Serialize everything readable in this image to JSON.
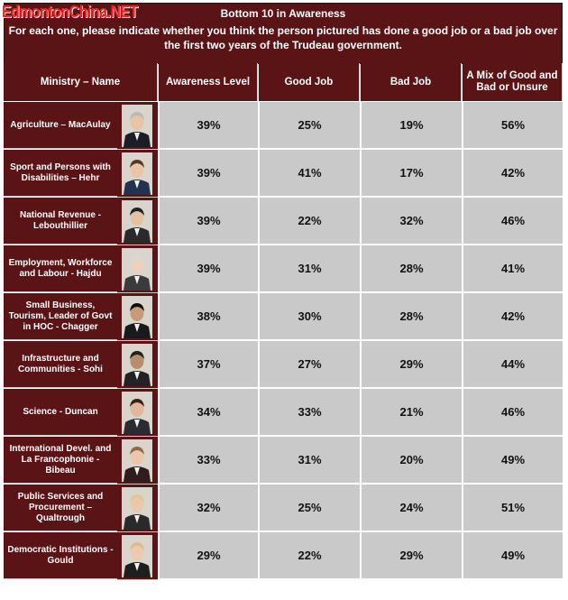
{
  "watermark": "EdmontonChina.NET",
  "chart_data": {
    "type": "table",
    "title": "Bottom 10 in Awareness",
    "subtitle": "For each one, please indicate whether you think the person pictured has done a good job or a bad job over the first two years of the Trudeau government.",
    "columns": [
      "Ministry – Name",
      "Awareness Level",
      "Good Job",
      "Bad Job",
      "A Mix of Good and Bad or Unsure"
    ],
    "rows": [
      {
        "ministry": "Agriculture – MacAulay",
        "awareness": "39%",
        "good": "25%",
        "bad": "19%",
        "mix": "56%"
      },
      {
        "ministry": "Sport and Persons with Disabilities – Hehr",
        "awareness": "39%",
        "good": "41%",
        "bad": "17%",
        "mix": "42%"
      },
      {
        "ministry": "National Revenue - Lebouthillier",
        "awareness": "39%",
        "good": "22%",
        "bad": "32%",
        "mix": "46%"
      },
      {
        "ministry": "Employment, Workforce and Labour - Hajdu",
        "awareness": "39%",
        "good": "31%",
        "bad": "28%",
        "mix": "41%"
      },
      {
        "ministry": "Small Business, Tourism, Leader of Govt in HOC - Chagger",
        "awareness": "38%",
        "good": "30%",
        "bad": "28%",
        "mix": "42%"
      },
      {
        "ministry": "Infrastructure and Communities - Sohi",
        "awareness": "37%",
        "good": "27%",
        "bad": "29%",
        "mix": "44%"
      },
      {
        "ministry": "Science - Duncan",
        "awareness": "34%",
        "good": "33%",
        "bad": "21%",
        "mix": "46%"
      },
      {
        "ministry": "International Devel. and La Francophonie - Bibeau",
        "awareness": "33%",
        "good": "31%",
        "bad": "20%",
        "mix": "49%"
      },
      {
        "ministry": "Public Services and Procurement – Qualtrough",
        "awareness": "32%",
        "good": "25%",
        "bad": "24%",
        "mix": "51%"
      },
      {
        "ministry": "Democratic Institutions - Gould",
        "awareness": "29%",
        "good": "22%",
        "bad": "29%",
        "mix": "49%"
      }
    ]
  },
  "colors": {
    "header_bg": "#5b1416",
    "cell_bg": "#c9c9c9",
    "header_text": "#ffffff",
    "watermark": "#ff2020"
  }
}
